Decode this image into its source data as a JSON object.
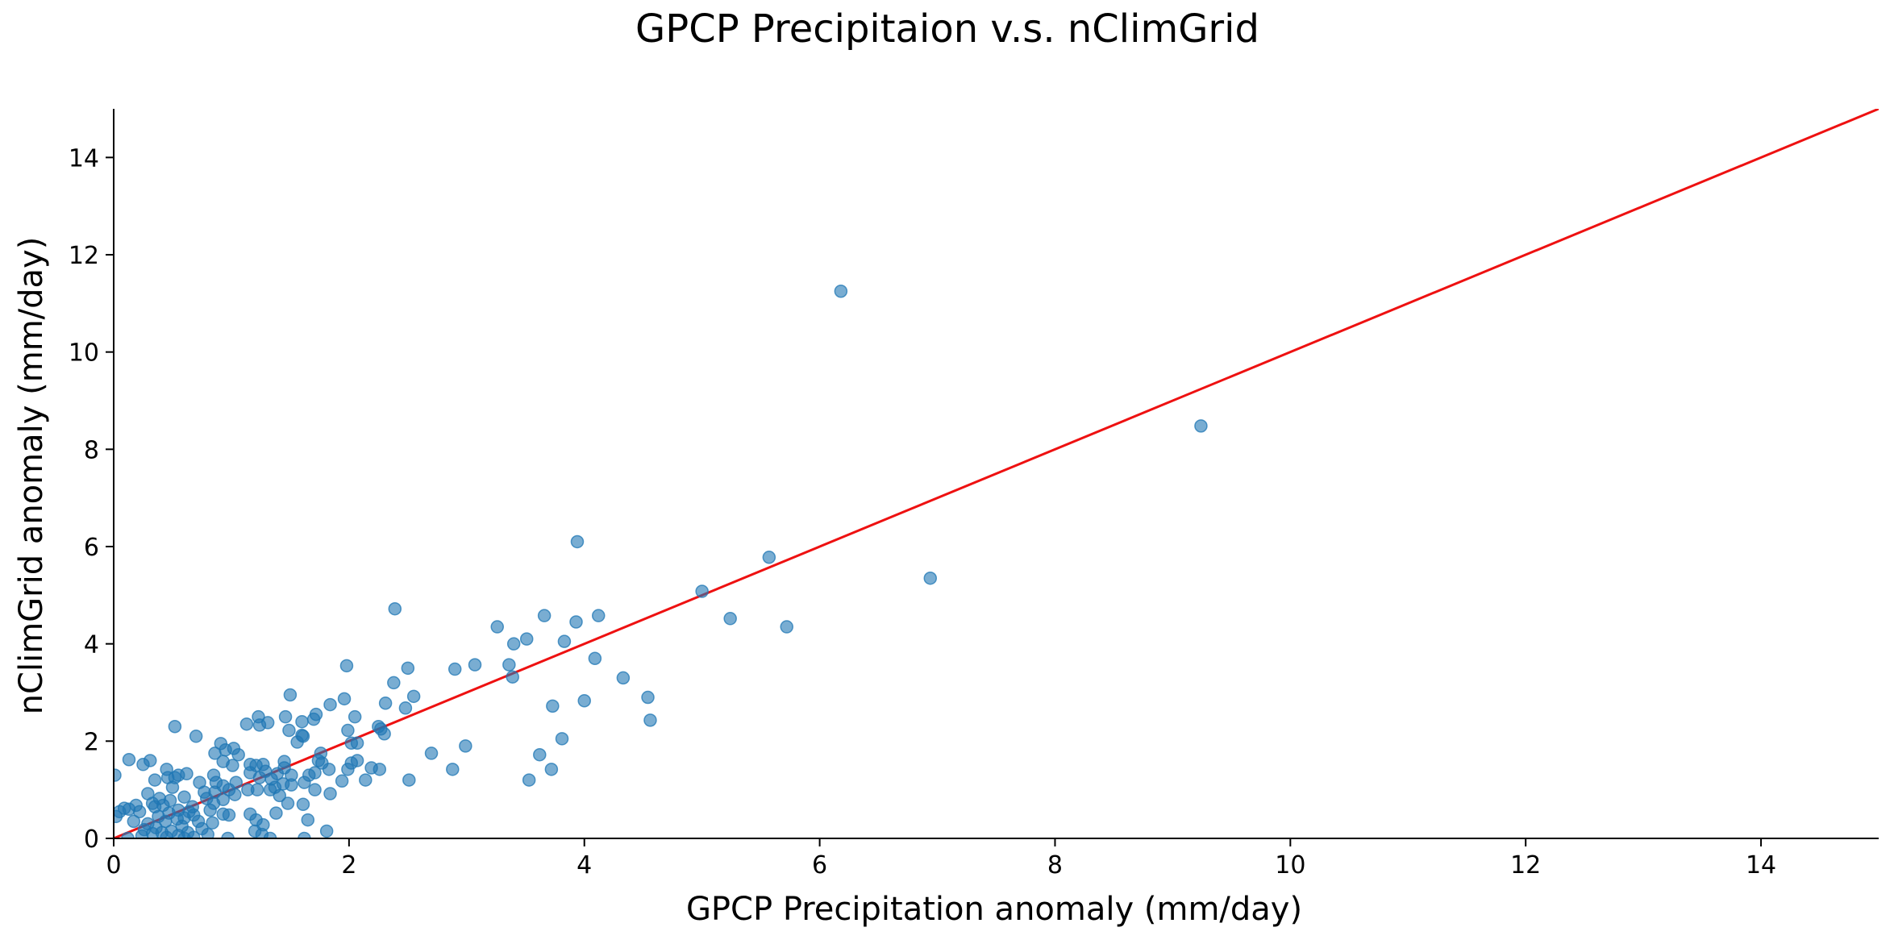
{
  "chart_data": {
    "type": "scatter",
    "title": "GPCP Precipitaion v.s. nClimGrid",
    "xlabel": "GPCP Precipitation anomaly (mm/day)",
    "ylabel": "nClimGrid anomaly (mm/day)",
    "xlim": [
      0,
      15
    ],
    "ylim": [
      0,
      15
    ],
    "x_ticks": [
      "0",
      "2",
      "4",
      "6",
      "8",
      "10",
      "12",
      "14"
    ],
    "y_ticks": [
      "0",
      "2",
      "4",
      "6",
      "8",
      "10",
      "12",
      "14"
    ],
    "grid": false,
    "legend": "none",
    "series": [
      {
        "marker": "circle",
        "color": "#1f77b4",
        "alpha": 0.6,
        "points": [
          [
            6.18,
            11.25
          ],
          [
            9.24,
            8.48
          ],
          [
            3.94,
            6.1
          ],
          [
            6.94,
            5.35
          ],
          [
            5.57,
            5.78
          ],
          [
            5.0,
            5.08
          ],
          [
            5.24,
            4.52
          ],
          [
            5.72,
            4.35
          ],
          [
            2.39,
            4.72
          ],
          [
            3.66,
            4.58
          ],
          [
            4.12,
            4.58
          ],
          [
            3.93,
            4.45
          ],
          [
            3.26,
            4.35
          ],
          [
            3.51,
            4.1
          ],
          [
            3.4,
            4.0
          ],
          [
            3.83,
            4.05
          ],
          [
            4.09,
            3.7
          ],
          [
            3.07,
            3.57
          ],
          [
            3.36,
            3.57
          ],
          [
            2.9,
            3.48
          ],
          [
            2.5,
            3.5
          ],
          [
            1.98,
            3.55
          ],
          [
            3.39,
            3.32
          ],
          [
            4.33,
            3.3
          ],
          [
            2.38,
            3.2
          ],
          [
            1.5,
            2.95
          ],
          [
            2.55,
            2.92
          ],
          [
            4.54,
            2.9
          ],
          [
            1.96,
            2.87
          ],
          [
            4.0,
            2.83
          ],
          [
            2.31,
            2.78
          ],
          [
            1.84,
            2.75
          ],
          [
            3.73,
            2.72
          ],
          [
            2.48,
            2.68
          ],
          [
            1.72,
            2.55
          ],
          [
            1.46,
            2.5
          ],
          [
            2.05,
            2.5
          ],
          [
            1.23,
            2.5
          ],
          [
            4.56,
            2.43
          ],
          [
            1.7,
            2.45
          ],
          [
            1.6,
            2.4
          ],
          [
            1.31,
            2.38
          ],
          [
            1.13,
            2.35
          ],
          [
            1.24,
            2.33
          ],
          [
            2.25,
            2.3
          ],
          [
            0.52,
            2.3
          ],
          [
            2.27,
            2.25
          ],
          [
            1.99,
            2.22
          ],
          [
            1.49,
            2.22
          ],
          [
            2.3,
            2.15
          ],
          [
            1.6,
            2.12
          ],
          [
            1.61,
            2.1
          ],
          [
            0.7,
            2.1
          ],
          [
            3.81,
            2.05
          ],
          [
            1.56,
            1.98
          ],
          [
            2.02,
            1.96
          ],
          [
            0.91,
            1.95
          ],
          [
            2.07,
            1.96
          ],
          [
            2.99,
            1.9
          ],
          [
            1.02,
            1.85
          ],
          [
            0.95,
            1.82
          ],
          [
            2.7,
            1.75
          ],
          [
            1.76,
            1.75
          ],
          [
            0.86,
            1.75
          ],
          [
            1.06,
            1.72
          ],
          [
            3.62,
            1.72
          ],
          [
            1.74,
            1.6
          ],
          [
            2.07,
            1.6
          ],
          [
            1.45,
            1.58
          ],
          [
            0.31,
            1.6
          ],
          [
            0.13,
            1.62
          ],
          [
            0.93,
            1.58
          ],
          [
            1.77,
            1.55
          ],
          [
            2.02,
            1.55
          ],
          [
            1.27,
            1.52
          ],
          [
            1.16,
            1.52
          ],
          [
            0.25,
            1.52
          ],
          [
            1.21,
            1.5
          ],
          [
            1.01,
            1.5
          ],
          [
            1.45,
            1.45
          ],
          [
            2.19,
            1.45
          ],
          [
            1.83,
            1.42
          ],
          [
            2.26,
            1.42
          ],
          [
            2.88,
            1.42
          ],
          [
            3.72,
            1.42
          ],
          [
            0.45,
            1.42
          ],
          [
            1.99,
            1.42
          ],
          [
            1.29,
            1.38
          ],
          [
            1.71,
            1.35
          ],
          [
            1.16,
            1.35
          ],
          [
            1.39,
            1.33
          ],
          [
            0.62,
            1.33
          ],
          [
            0.85,
            1.3
          ],
          [
            0.55,
            1.3
          ],
          [
            1.51,
            1.3
          ],
          [
            0.01,
            1.3
          ],
          [
            1.66,
            1.3
          ],
          [
            0.46,
            1.25
          ],
          [
            1.24,
            1.25
          ],
          [
            0.52,
            1.25
          ],
          [
            1.34,
            1.22
          ],
          [
            2.51,
            1.2
          ],
          [
            3.53,
            1.2
          ],
          [
            2.14,
            1.2
          ],
          [
            0.35,
            1.2
          ],
          [
            1.94,
            1.18
          ],
          [
            1.62,
            1.15
          ],
          [
            1.04,
            1.15
          ],
          [
            0.87,
            1.15
          ],
          [
            0.73,
            1.15
          ],
          [
            1.44,
            1.12
          ],
          [
            0.93,
            1.08
          ],
          [
            1.51,
            1.1
          ],
          [
            1.37,
            1.05
          ],
          [
            0.5,
            1.05
          ],
          [
            1.71,
            1.0
          ],
          [
            1.33,
            1.0
          ],
          [
            1.14,
            1.0
          ],
          [
            0.98,
            1.0
          ],
          [
            1.22,
            1.0
          ],
          [
            0.86,
            0.95
          ],
          [
            0.77,
            0.95
          ],
          [
            0.29,
            0.92
          ],
          [
            1.84,
            0.92
          ],
          [
            1.03,
            0.9
          ],
          [
            1.41,
            0.88
          ],
          [
            0.6,
            0.85
          ],
          [
            0.79,
            0.82
          ],
          [
            0.39,
            0.82
          ],
          [
            0.93,
            0.8
          ],
          [
            0.48,
            0.78
          ],
          [
            0.85,
            0.72
          ],
          [
            0.33,
            0.72
          ],
          [
            1.48,
            0.72
          ],
          [
            1.61,
            0.7
          ],
          [
            0.42,
            0.68
          ],
          [
            0.19,
            0.68
          ],
          [
            0.67,
            0.65
          ],
          [
            0.35,
            0.65
          ],
          [
            0.09,
            0.62
          ],
          [
            0.13,
            0.6
          ],
          [
            0.55,
            0.58
          ],
          [
            0.82,
            0.58
          ],
          [
            0.64,
            0.55
          ],
          [
            0.22,
            0.55
          ],
          [
            0.05,
            0.55
          ],
          [
            0.47,
            0.52
          ],
          [
            1.38,
            0.52
          ],
          [
            1.16,
            0.5
          ],
          [
            0.93,
            0.5
          ],
          [
            0.98,
            0.48
          ],
          [
            0.68,
            0.48
          ],
          [
            0.38,
            0.45
          ],
          [
            0.6,
            0.42
          ],
          [
            0.02,
            0.45
          ],
          [
            0.54,
            0.4
          ],
          [
            1.65,
            0.38
          ],
          [
            1.21,
            0.38
          ],
          [
            0.72,
            0.35
          ],
          [
            0.44,
            0.35
          ],
          [
            0.17,
            0.35
          ],
          [
            0.84,
            0.32
          ],
          [
            0.29,
            0.3
          ],
          [
            1.27,
            0.28
          ],
          [
            0.58,
            0.25
          ],
          [
            0.36,
            0.22
          ],
          [
            0.75,
            0.2
          ],
          [
            0.26,
            0.18
          ],
          [
            0.49,
            0.15
          ],
          [
            1.81,
            0.15
          ],
          [
            1.2,
            0.15
          ],
          [
            0.63,
            0.12
          ],
          [
            0.41,
            0.12
          ],
          [
            0.33,
            0.1
          ],
          [
            1.26,
            0.08
          ],
          [
            0.8,
            0.08
          ],
          [
            0.55,
            0.06
          ],
          [
            0.24,
            0.05
          ],
          [
            0.68,
            0.02
          ],
          [
            0.45,
            0.02
          ],
          [
            1.33,
            0.0
          ],
          [
            1.62,
            0.0
          ],
          [
            0.97,
            0.0
          ],
          [
            0.12,
            0.0
          ],
          [
            0.6,
            0.0
          ]
        ]
      }
    ],
    "reference_line": {
      "style": "line",
      "color": "#ee1111",
      "points": [
        [
          0,
          0
        ],
        [
          15,
          15
        ]
      ]
    }
  }
}
